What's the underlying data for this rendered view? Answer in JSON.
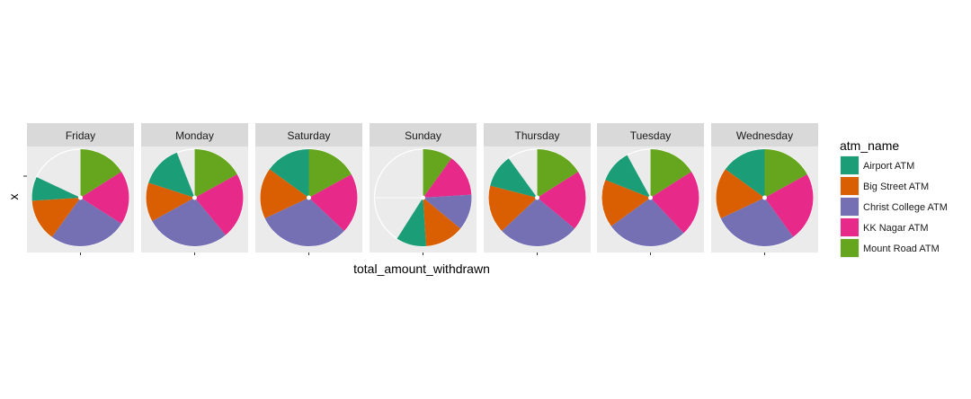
{
  "chart_data": {
    "type": "pie",
    "facet_labels": [
      "Friday",
      "Monday",
      "Saturday",
      "Sunday",
      "Thursday",
      "Tuesday",
      "Wednesday"
    ],
    "xlabel": "total_amount_withdrawn",
    "ylabel": "x",
    "legend": {
      "title": "atm_name",
      "position": "right",
      "entries": [
        "Airport ATM",
        "Big Street ATM",
        "Christ College ATM",
        "KK Nagar ATM",
        "Mount Road ATM"
      ]
    },
    "colors": {
      "Airport ATM": "#1b9e77",
      "Big Street ATM": "#d95f02",
      "Christ College ATM": "#7570b3",
      "KK Nagar ATM": "#e7298a",
      "Mount Road ATM": "#66a61e"
    },
    "scale_max": 100,
    "panels": [
      {
        "day": "Friday",
        "segments": [
          {
            "atm": "Mount Road ATM",
            "value": 16
          },
          {
            "atm": "KK Nagar ATM",
            "value": 18
          },
          {
            "atm": "Christ College ATM",
            "value": 26
          },
          {
            "atm": "Big Street ATM",
            "value": 14
          },
          {
            "atm": "Airport ATM",
            "value": 8
          }
        ]
      },
      {
        "day": "Monday",
        "segments": [
          {
            "atm": "Mount Road ATM",
            "value": 17
          },
          {
            "atm": "KK Nagar ATM",
            "value": 22
          },
          {
            "atm": "Christ College ATM",
            "value": 28
          },
          {
            "atm": "Big Street ATM",
            "value": 13
          },
          {
            "atm": "Airport ATM",
            "value": 14
          }
        ]
      },
      {
        "day": "Saturday",
        "segments": [
          {
            "atm": "Mount Road ATM",
            "value": 17
          },
          {
            "atm": "KK Nagar ATM",
            "value": 20
          },
          {
            "atm": "Christ College ATM",
            "value": 31
          },
          {
            "atm": "Big Street ATM",
            "value": 17
          },
          {
            "atm": "Airport ATM",
            "value": 15
          }
        ]
      },
      {
        "day": "Sunday",
        "segments": [
          {
            "atm": "Mount Road ATM",
            "value": 10
          },
          {
            "atm": "KK Nagar ATM",
            "value": 14
          },
          {
            "atm": "Christ College ATM",
            "value": 12
          },
          {
            "atm": "Big Street ATM",
            "value": 13
          },
          {
            "atm": "Airport ATM",
            "value": 10
          }
        ]
      },
      {
        "day": "Thursday",
        "segments": [
          {
            "atm": "Mount Road ATM",
            "value": 16
          },
          {
            "atm": "KK Nagar ATM",
            "value": 20
          },
          {
            "atm": "Christ College ATM",
            "value": 27
          },
          {
            "atm": "Big Street ATM",
            "value": 16
          },
          {
            "atm": "Airport ATM",
            "value": 11
          }
        ]
      },
      {
        "day": "Tuesday",
        "segments": [
          {
            "atm": "Mount Road ATM",
            "value": 16
          },
          {
            "atm": "KK Nagar ATM",
            "value": 22
          },
          {
            "atm": "Christ College ATM",
            "value": 27
          },
          {
            "atm": "Big Street ATM",
            "value": 16
          },
          {
            "atm": "Airport ATM",
            "value": 11
          }
        ]
      },
      {
        "day": "Wednesday",
        "segments": [
          {
            "atm": "Mount Road ATM",
            "value": 17
          },
          {
            "atm": "KK Nagar ATM",
            "value": 23
          },
          {
            "atm": "Christ College ATM",
            "value": 28
          },
          {
            "atm": "Big Street ATM",
            "value": 17
          },
          {
            "atm": "Airport ATM",
            "value": 15
          }
        ]
      }
    ]
  }
}
